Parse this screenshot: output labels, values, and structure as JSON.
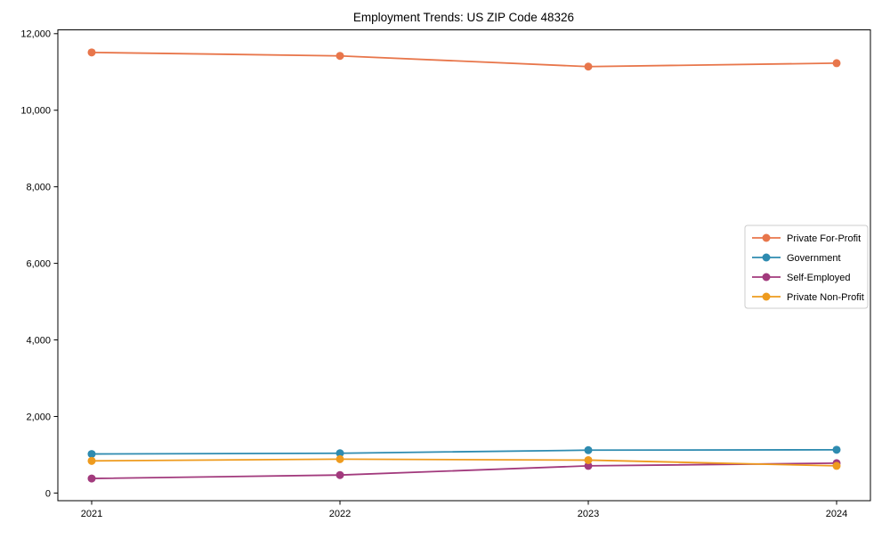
{
  "chart_data": {
    "type": "line",
    "title": "Employment Trends: US ZIP Code 48326",
    "xlabel": "",
    "ylabel": "",
    "x": [
      "2021",
      "2022",
      "2023",
      "2024"
    ],
    "yticks": [
      0,
      2000,
      4000,
      6000,
      8000,
      10000,
      12000
    ],
    "ytick_labels": [
      "0",
      "2,000",
      "4,000",
      "6,000",
      "8,000",
      "10,000",
      "12,000"
    ],
    "ylim": [
      -200,
      12100
    ],
    "grid": false,
    "legend_position": "center right",
    "series": [
      {
        "name": "Private For-Profit",
        "color": "#E8764B",
        "values": [
          11510,
          11420,
          11140,
          11230
        ]
      },
      {
        "name": "Government",
        "color": "#2E8BB0",
        "values": [
          1020,
          1040,
          1120,
          1130
        ]
      },
      {
        "name": "Self-Employed",
        "color": "#A23A7D",
        "values": [
          380,
          470,
          710,
          780
        ]
      },
      {
        "name": "Private Non-Profit",
        "color": "#EE9B1E",
        "values": [
          840,
          885,
          860,
          710
        ]
      }
    ],
    "colors": {
      "spine": "#000000",
      "legend_border": "#cccccc",
      "background": "#ffffff"
    }
  }
}
